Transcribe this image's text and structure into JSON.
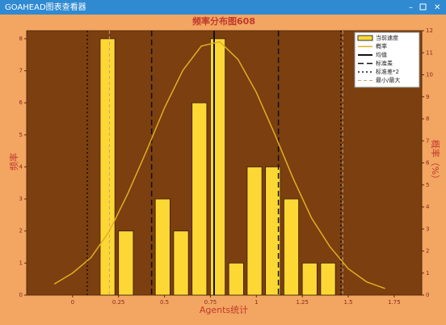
{
  "window_title": "GOAHEAD图表查看器",
  "chart_data": {
    "type": "histogram",
    "title": "频率分布图608",
    "xlabel": "Agents统计",
    "ylabel": "频率",
    "y2label": "概率（%）",
    "bins": [
      0.14,
      0.24,
      0.34,
      0.44,
      0.54,
      0.64,
      0.74,
      0.84,
      0.94,
      1.04,
      1.14,
      1.24,
      1.34,
      1.44
    ],
    "counts": [
      8,
      2,
      0,
      3,
      2,
      6,
      8,
      1,
      4,
      4,
      3,
      1,
      1
    ],
    "bar_name": "当前速度",
    "bar_color": "#fdd835",
    "curve": {
      "name": "概率",
      "color": "#e0b020",
      "axis": "y2",
      "x": [
        -0.1,
        0,
        0.1,
        0.2,
        0.3,
        0.4,
        0.5,
        0.6,
        0.7,
        0.8,
        0.9,
        1.0,
        1.1,
        1.2,
        1.3,
        1.4,
        1.5,
        1.6,
        1.7
      ],
      "values": [
        0.5,
        1.0,
        1.7,
        2.9,
        4.6,
        6.5,
        8.5,
        10.2,
        11.3,
        11.5,
        10.7,
        9.2,
        7.3,
        5.3,
        3.5,
        2.2,
        1.2,
        0.6,
        0.3
      ]
    },
    "mean": {
      "name": "均值",
      "value": 0.77
    },
    "std": {
      "name": "标准差",
      "values": [
        0.43,
        1.12
      ]
    },
    "std2": {
      "name": "标准差*2",
      "values": [
        0.08,
        1.46
      ]
    },
    "minmax": {
      "name": "最小/最大",
      "values": [
        0.2,
        1.47
      ]
    },
    "xlim": [
      -0.25,
      1.9
    ],
    "ylim": [
      0,
      8.25
    ],
    "y2lim": [
      0,
      12
    ],
    "xticks": [
      0,
      0.25,
      0.5,
      0.75,
      1,
      1.25,
      1.5,
      1.75
    ],
    "yticks": [
      0,
      1,
      2,
      3,
      4,
      5,
      6,
      7,
      8
    ],
    "y2ticks": [
      0,
      1,
      2,
      3,
      4,
      5,
      6,
      7,
      8,
      9,
      10,
      11,
      12
    ],
    "legend": "upper right"
  }
}
